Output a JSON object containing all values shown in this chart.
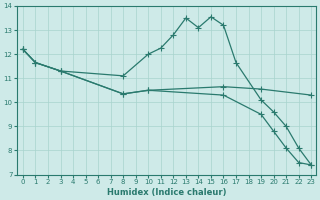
{
  "xlabel": "Humidex (Indice chaleur)",
  "xlim_min": -0.5,
  "xlim_max": 23.4,
  "ylim_min": 7,
  "ylim_max": 14,
  "yticks": [
    7,
    8,
    9,
    10,
    11,
    12,
    13,
    14
  ],
  "xticks": [
    0,
    1,
    2,
    3,
    4,
    5,
    6,
    7,
    8,
    9,
    10,
    11,
    12,
    13,
    14,
    15,
    16,
    17,
    18,
    19,
    20,
    21,
    22,
    23
  ],
  "bg_color": "#ceeae8",
  "line_color": "#2a7a6e",
  "grid_color": "#a8d4ce",
  "line1_x": [
    0,
    1,
    3,
    8,
    10,
    11,
    12,
    13,
    14,
    15,
    16,
    17,
    19,
    20,
    21,
    22,
    23
  ],
  "line1_y": [
    12.2,
    11.65,
    11.3,
    11.1,
    12.0,
    12.25,
    12.8,
    13.5,
    13.1,
    13.55,
    13.2,
    11.65,
    10.1,
    9.6,
    9.0,
    8.1,
    7.4
  ],
  "line2_x": [
    0,
    1,
    3,
    8,
    10,
    16,
    19,
    23
  ],
  "line2_y": [
    12.2,
    11.65,
    11.3,
    10.35,
    10.5,
    10.65,
    10.55,
    10.3
  ],
  "line3_x": [
    0,
    1,
    3,
    8,
    10,
    16,
    19,
    20,
    21,
    22,
    23
  ],
  "line3_y": [
    12.2,
    11.65,
    11.3,
    10.35,
    10.5,
    10.3,
    9.5,
    8.8,
    8.1,
    7.5,
    7.4
  ]
}
